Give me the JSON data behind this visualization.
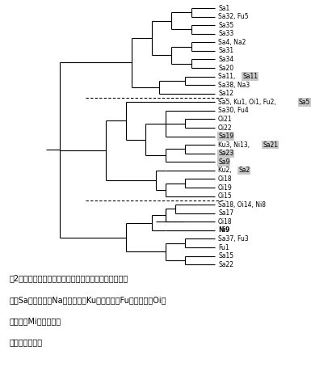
{
  "bg_color": "#ffffff",
  "line_color": "#000000",
  "highlight_bg": "#c8c8c8",
  "lw": 0.8,
  "total_leaves": 31,
  "xleaf": 10.0,
  "xlim_left": -0.5,
  "xlim_right": 14.5,
  "leaves": [
    {
      "idx": 1,
      "plain": "Sa1",
      "hl": null
    },
    {
      "idx": 2,
      "plain": "Sa32, Fu5",
      "hl": null
    },
    {
      "idx": 3,
      "plain": "Sa35",
      "hl": null
    },
    {
      "idx": 4,
      "plain": "Sa33",
      "hl": null
    },
    {
      "idx": 5,
      "plain": "Sa4, Na2",
      "hl": null
    },
    {
      "idx": 6,
      "plain": "Sa31",
      "hl": null
    },
    {
      "idx": 7,
      "plain": "Sa34",
      "hl": null
    },
    {
      "idx": 8,
      "plain": "Sa20",
      "hl": null
    },
    {
      "idx": 9,
      "plain": "Sa11, ",
      "hl": "Sa11"
    },
    {
      "idx": 10,
      "plain": "Sa38, Na3",
      "hl": null
    },
    {
      "idx": 11,
      "plain": "Sa12",
      "hl": null
    },
    {
      "idx": 12,
      "plain": "Sa5, Ku1, Oi1, Fu2, ",
      "hl": "Sa5"
    },
    {
      "idx": 13,
      "plain": "Sa30, Fu4",
      "hl": null
    },
    {
      "idx": 14,
      "plain": "Oi21",
      "hl": null
    },
    {
      "idx": 15,
      "plain": "Oi22",
      "hl": null
    },
    {
      "idx": 16,
      "plain": "",
      "hl": "Sa19"
    },
    {
      "idx": 17,
      "plain": "Ku3, Ni13, ",
      "hl": "Sa21"
    },
    {
      "idx": 18,
      "plain": "",
      "hl": "Sa23"
    },
    {
      "idx": 19,
      "plain": "",
      "hl": "Sa9"
    },
    {
      "idx": 20,
      "plain": "Ku2, ",
      "hl": "Sa2"
    },
    {
      "idx": 21,
      "plain": "Oi18",
      "hl": null
    },
    {
      "idx": 22,
      "plain": "Oi19",
      "hl": null
    },
    {
      "idx": 23,
      "plain": "Oi15",
      "hl": null
    },
    {
      "idx": 24,
      "plain": "Sa18, Oi14, Ni8",
      "hl": null
    },
    {
      "idx": 25,
      "plain": "Sa17",
      "hl": null
    },
    {
      "idx": 26,
      "plain": "Oi18",
      "hl": null
    },
    {
      "idx": 27,
      "plain": "Ni9",
      "hl": null,
      "bold": true
    },
    {
      "idx": 28,
      "plain": "Sa37, Fu3",
      "hl": null
    },
    {
      "idx": 29,
      "plain": "Fu1",
      "hl": null
    },
    {
      "idx": 30,
      "plain": "Sa15",
      "hl": null
    },
    {
      "idx": 31,
      "plain": "Sa22",
      "hl": null
    }
  ],
  "caption": [
    "図2．耲性菌の遺伝子型に基づき作成したデンドログラ",
    "ム（Sa：佐賀県，Na：長崎県，Ku：熊本県，Fu：福岡県，Oi：",
    "大分県，Mi：宮崎県）",
    "網かけは感性菌"
  ],
  "fontsize_label": 5.5,
  "fontsize_caption": 7.0
}
